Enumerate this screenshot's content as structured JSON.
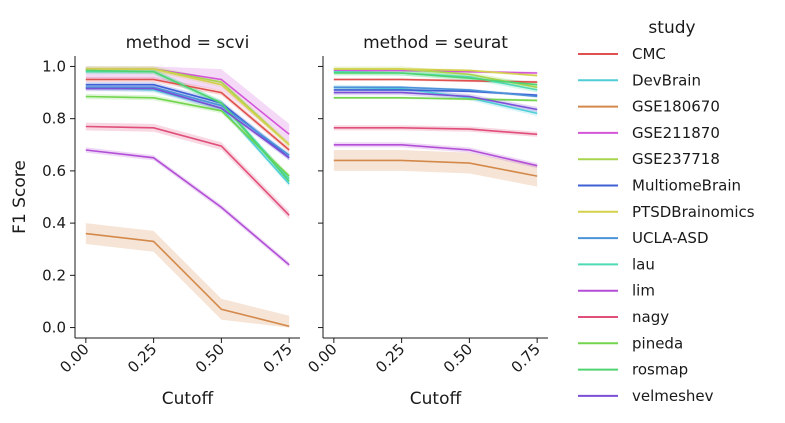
{
  "chart_data": {
    "type": "line",
    "ylabel": "F1 Score",
    "xlabel": "Cutoff",
    "x": [
      0.0,
      0.25,
      0.5,
      0.75
    ],
    "xticks": [
      "0.00",
      "0.25",
      "0.50",
      "0.75"
    ],
    "yticks": [
      "0.0",
      "0.2",
      "0.4",
      "0.6",
      "0.8",
      "1.0"
    ],
    "ylim": [
      -0.04,
      1.04
    ],
    "xlim": [
      -0.04,
      0.79
    ],
    "legend_title": "study",
    "legend_placement": "right",
    "grid": false,
    "facets": [
      {
        "title": "method = scvi",
        "series": [
          {
            "name": "CMC",
            "color": "#e0504e",
            "values": [
              0.95,
              0.95,
              0.9,
              0.68
            ],
            "band": 0.01
          },
          {
            "name": "DevBrain",
            "color": "#4ecdd6",
            "values": [
              0.92,
              0.91,
              0.84,
              0.55
            ],
            "band": 0.01
          },
          {
            "name": "GSE180670",
            "color": "#d4894a",
            "values": [
              0.36,
              0.33,
              0.07,
              0.005
            ],
            "band": 0.04
          },
          {
            "name": "GSE211870",
            "color": "#d355d9",
            "values": [
              0.99,
              0.99,
              0.95,
              0.74
            ],
            "band": 0.04
          },
          {
            "name": "GSE237718",
            "color": "#a8d44d",
            "values": [
              0.99,
              0.99,
              0.94,
              0.7
            ],
            "band": 0.01
          },
          {
            "name": "MultiomeBrain",
            "color": "#3f5fd4",
            "values": [
              0.93,
              0.93,
              0.86,
              0.65
            ],
            "band": 0.01
          },
          {
            "name": "PTSDBrainomics",
            "color": "#d4d14d",
            "values": [
              0.99,
              0.99,
              0.93,
              0.7
            ],
            "band": 0.01
          },
          {
            "name": "UCLA-ASD",
            "color": "#4b92d9",
            "values": [
              0.92,
              0.92,
              0.85,
              0.66
            ],
            "band": 0.01
          },
          {
            "name": "lau",
            "color": "#4fd9b5",
            "values": [
              0.98,
              0.98,
              0.86,
              0.57
            ],
            "band": 0.01
          },
          {
            "name": "lim",
            "color": "#b24fd6",
            "values": [
              0.68,
              0.65,
              0.46,
              0.24
            ],
            "band": 0.01
          },
          {
            "name": "nagy",
            "color": "#e04f7a",
            "values": [
              0.77,
              0.765,
              0.695,
              0.43
            ],
            "band": 0.015
          },
          {
            "name": "pineda",
            "color": "#73d44d",
            "values": [
              0.885,
              0.88,
              0.83,
              0.58
            ],
            "band": 0.01
          },
          {
            "name": "rosmap",
            "color": "#4fd46f",
            "values": [
              0.985,
              0.98,
              0.86,
              0.56
            ],
            "band": 0.01
          },
          {
            "name": "velmeshev",
            "color": "#7b4fd6",
            "values": [
              0.915,
              0.915,
              0.84,
              0.65
            ],
            "band": 0.01
          }
        ]
      },
      {
        "title": "method = seurat",
        "series": [
          {
            "name": "CMC",
            "color": "#e0504e",
            "values": [
              0.95,
              0.95,
              0.945,
              0.94
            ],
            "band": 0.005
          },
          {
            "name": "DevBrain",
            "color": "#4ecdd6",
            "values": [
              0.92,
              0.915,
              0.88,
              0.82
            ],
            "band": 0.01
          },
          {
            "name": "GSE180670",
            "color": "#d4894a",
            "values": [
              0.64,
              0.64,
              0.63,
              0.58
            ],
            "band": 0.04
          },
          {
            "name": "GSE211870",
            "color": "#d355d9",
            "values": [
              0.985,
              0.985,
              0.98,
              0.975
            ],
            "band": 0.005
          },
          {
            "name": "GSE237718",
            "color": "#a8d44d",
            "values": [
              0.99,
              0.99,
              0.97,
              0.92
            ],
            "band": 0.01
          },
          {
            "name": "MultiomeBrain",
            "color": "#3f5fd4",
            "values": [
              0.91,
              0.91,
              0.905,
              0.89
            ],
            "band": 0.005
          },
          {
            "name": "PTSDBrainomics",
            "color": "#d4d14d",
            "values": [
              0.99,
              0.99,
              0.985,
              0.965
            ],
            "band": 0.005
          },
          {
            "name": "UCLA-ASD",
            "color": "#4b92d9",
            "values": [
              0.92,
              0.92,
              0.91,
              0.885
            ],
            "band": 0.005
          },
          {
            "name": "lau",
            "color": "#4fd9b5",
            "values": [
              0.98,
              0.975,
              0.96,
              0.91
            ],
            "band": 0.01
          },
          {
            "name": "lim",
            "color": "#b24fd6",
            "values": [
              0.7,
              0.7,
              0.68,
              0.62
            ],
            "band": 0.01
          },
          {
            "name": "nagy",
            "color": "#e04f7a",
            "values": [
              0.765,
              0.765,
              0.76,
              0.74
            ],
            "band": 0.01
          },
          {
            "name": "pineda",
            "color": "#73d44d",
            "values": [
              0.88,
              0.88,
              0.875,
              0.87
            ],
            "band": 0.005
          },
          {
            "name": "rosmap",
            "color": "#4fd46f",
            "values": [
              0.975,
              0.975,
              0.955,
              0.93
            ],
            "band": 0.01
          },
          {
            "name": "velmeshev",
            "color": "#7b4fd6",
            "values": [
              0.9,
              0.9,
              0.885,
              0.835
            ],
            "band": 0.01
          }
        ]
      }
    ]
  }
}
